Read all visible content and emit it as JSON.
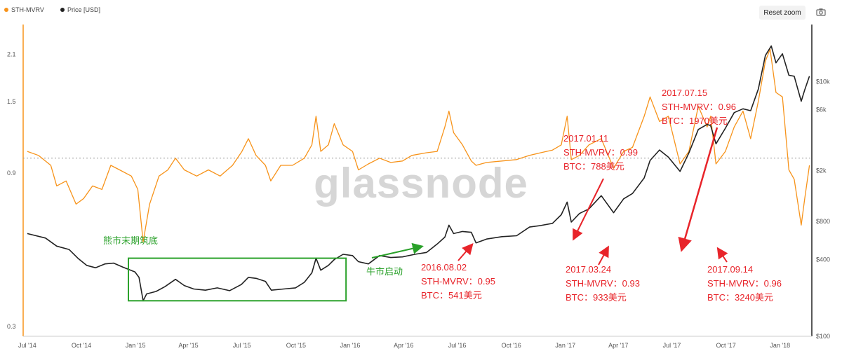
{
  "legend": {
    "series1": {
      "label": "STH-MVRV",
      "color": "#f7931a"
    },
    "series2": {
      "label": "Price [USD]",
      "color": "#222222"
    }
  },
  "toolbar": {
    "reset_zoom": "Reset zoom",
    "camera_icon": "camera-icon"
  },
  "watermark": "glassnode",
  "chart_data": {
    "type": "line",
    "x_ticks": [
      "Jul '14",
      "Oct '14",
      "Jan '15",
      "Apr '15",
      "Jul '15",
      "Oct '15",
      "Jan '16",
      "Apr '16",
      "Jul '16",
      "Oct '16",
      "Jan '17",
      "Apr '17",
      "Jul '17",
      "Oct '17",
      "Jan '18"
    ],
    "y_left_ticks": [
      "0.3",
      "0.9",
      "1.5",
      "2.1"
    ],
    "y_right_ticks": [
      "$100",
      "$400",
      "$800",
      "$2k",
      "$6k",
      "$10k"
    ],
    "y_left_log": true,
    "y_right_log": true,
    "reference_line": 1.0,
    "series": [
      {
        "name": "STH-MVRV",
        "color": "#f7931a",
        "axis": "left",
        "points": [
          [
            "2014-07-01",
            1.05
          ],
          [
            "2014-07-20",
            1.02
          ],
          [
            "2014-08-10",
            0.95
          ],
          [
            "2014-08-20",
            0.82
          ],
          [
            "2014-09-05",
            0.85
          ],
          [
            "2014-09-22",
            0.72
          ],
          [
            "2014-10-05",
            0.75
          ],
          [
            "2014-10-20",
            0.82
          ],
          [
            "2014-11-05",
            0.8
          ],
          [
            "2014-11-20",
            0.95
          ],
          [
            "2014-12-05",
            0.92
          ],
          [
            "2014-12-25",
            0.88
          ],
          [
            "2015-01-05",
            0.8
          ],
          [
            "2015-01-14",
            0.55
          ],
          [
            "2015-01-25",
            0.72
          ],
          [
            "2015-02-10",
            0.88
          ],
          [
            "2015-02-25",
            0.92
          ],
          [
            "2015-03-10",
            1.0
          ],
          [
            "2015-03-25",
            0.92
          ],
          [
            "2015-04-15",
            0.88
          ],
          [
            "2015-05-05",
            0.92
          ],
          [
            "2015-05-25",
            0.88
          ],
          [
            "2015-06-15",
            0.95
          ],
          [
            "2015-07-01",
            1.05
          ],
          [
            "2015-07-12",
            1.15
          ],
          [
            "2015-07-25",
            1.02
          ],
          [
            "2015-08-10",
            0.95
          ],
          [
            "2015-08-19",
            0.85
          ],
          [
            "2015-09-05",
            0.95
          ],
          [
            "2015-09-25",
            0.95
          ],
          [
            "2015-10-15",
            1.0
          ],
          [
            "2015-10-28",
            1.1
          ],
          [
            "2015-11-04",
            1.35
          ],
          [
            "2015-11-12",
            1.05
          ],
          [
            "2015-11-25",
            1.1
          ],
          [
            "2015-12-05",
            1.28
          ],
          [
            "2015-12-20",
            1.1
          ],
          [
            "2016-01-05",
            1.05
          ],
          [
            "2016-01-15",
            0.92
          ],
          [
            "2016-02-01",
            0.96
          ],
          [
            "2016-02-20",
            1.0
          ],
          [
            "2016-03-10",
            0.97
          ],
          [
            "2016-03-30",
            0.98
          ],
          [
            "2016-04-15",
            1.02
          ],
          [
            "2016-05-10",
            1.04
          ],
          [
            "2016-05-28",
            1.05
          ],
          [
            "2016-06-10",
            1.25
          ],
          [
            "2016-06-17",
            1.4
          ],
          [
            "2016-06-25",
            1.2
          ],
          [
            "2016-07-10",
            1.1
          ],
          [
            "2016-07-25",
            0.98
          ],
          [
            "2016-08-02",
            0.95
          ],
          [
            "2016-08-20",
            0.97
          ],
          [
            "2016-09-15",
            0.98
          ],
          [
            "2016-10-10",
            0.99
          ],
          [
            "2016-11-01",
            1.02
          ],
          [
            "2016-11-20",
            1.04
          ],
          [
            "2016-12-10",
            1.06
          ],
          [
            "2016-12-25",
            1.1
          ],
          [
            "2017-01-04",
            1.35
          ],
          [
            "2017-01-11",
            0.99
          ],
          [
            "2017-01-25",
            1.02
          ],
          [
            "2017-02-10",
            1.1
          ],
          [
            "2017-03-03",
            1.15
          ],
          [
            "2017-03-24",
            0.93
          ],
          [
            "2017-04-10",
            1.05
          ],
          [
            "2017-04-25",
            1.08
          ],
          [
            "2017-05-15",
            1.35
          ],
          [
            "2017-05-25",
            1.55
          ],
          [
            "2017-06-10",
            1.3
          ],
          [
            "2017-06-25",
            1.35
          ],
          [
            "2017-07-15",
            0.96
          ],
          [
            "2017-07-30",
            1.05
          ],
          [
            "2017-08-15",
            1.45
          ],
          [
            "2017-08-30",
            1.25
          ],
          [
            "2017-09-05",
            1.35
          ],
          [
            "2017-09-14",
            0.96
          ],
          [
            "2017-09-30",
            1.05
          ],
          [
            "2017-10-15",
            1.25
          ],
          [
            "2017-10-30",
            1.4
          ],
          [
            "2017-11-12",
            1.15
          ],
          [
            "2017-11-25",
            1.5
          ],
          [
            "2017-12-07",
            2.0
          ],
          [
            "2017-12-15",
            2.18
          ],
          [
            "2017-12-25",
            1.6
          ],
          [
            "2018-01-05",
            1.55
          ],
          [
            "2018-01-16",
            0.92
          ],
          [
            "2018-01-25",
            0.86
          ],
          [
            "2018-02-06",
            0.62
          ],
          [
            "2018-02-12",
            0.75
          ],
          [
            "2018-02-20",
            0.95
          ]
        ]
      },
      {
        "name": "Price [USD]",
        "color": "#222222",
        "axis": "right",
        "points": [
          [
            "2014-07-01",
            640
          ],
          [
            "2014-08-01",
            590
          ],
          [
            "2014-08-20",
            510
          ],
          [
            "2014-09-10",
            480
          ],
          [
            "2014-09-25",
            410
          ],
          [
            "2014-10-10",
            360
          ],
          [
            "2014-10-25",
            345
          ],
          [
            "2014-11-10",
            370
          ],
          [
            "2014-11-25",
            375
          ],
          [
            "2014-12-10",
            350
          ],
          [
            "2014-12-31",
            320
          ],
          [
            "2015-01-07",
            290
          ],
          [
            "2015-01-14",
            190
          ],
          [
            "2015-01-20",
            215
          ],
          [
            "2015-02-05",
            225
          ],
          [
            "2015-02-20",
            245
          ],
          [
            "2015-03-10",
            280
          ],
          [
            "2015-03-25",
            250
          ],
          [
            "2015-04-10",
            235
          ],
          [
            "2015-04-30",
            230
          ],
          [
            "2015-05-20",
            240
          ],
          [
            "2015-06-10",
            228
          ],
          [
            "2015-06-30",
            255
          ],
          [
            "2015-07-12",
            290
          ],
          [
            "2015-07-25",
            285
          ],
          [
            "2015-08-10",
            270
          ],
          [
            "2015-08-20",
            230
          ],
          [
            "2015-09-10",
            235
          ],
          [
            "2015-09-30",
            240
          ],
          [
            "2015-10-15",
            265
          ],
          [
            "2015-10-28",
            315
          ],
          [
            "2015-11-04",
            410
          ],
          [
            "2015-11-12",
            330
          ],
          [
            "2015-11-25",
            360
          ],
          [
            "2015-12-05",
            400
          ],
          [
            "2015-12-20",
            440
          ],
          [
            "2016-01-05",
            430
          ],
          [
            "2016-01-15",
            385
          ],
          [
            "2016-02-01",
            370
          ],
          [
            "2016-02-20",
            430
          ],
          [
            "2016-03-10",
            415
          ],
          [
            "2016-03-30",
            420
          ],
          [
            "2016-04-20",
            440
          ],
          [
            "2016-05-10",
            455
          ],
          [
            "2016-05-28",
            530
          ],
          [
            "2016-06-10",
            600
          ],
          [
            "2016-06-17",
            745
          ],
          [
            "2016-06-25",
            640
          ],
          [
            "2016-07-10",
            665
          ],
          [
            "2016-07-25",
            655
          ],
          [
            "2016-08-02",
            541
          ],
          [
            "2016-08-20",
            580
          ],
          [
            "2016-09-15",
            605
          ],
          [
            "2016-10-10",
            615
          ],
          [
            "2016-11-01",
            720
          ],
          [
            "2016-11-20",
            740
          ],
          [
            "2016-12-10",
            770
          ],
          [
            "2016-12-25",
            900
          ],
          [
            "2017-01-04",
            1130
          ],
          [
            "2017-01-11",
            788
          ],
          [
            "2017-01-25",
            920
          ],
          [
            "2017-02-10",
            1000
          ],
          [
            "2017-03-03",
            1270
          ],
          [
            "2017-03-24",
            933
          ],
          [
            "2017-04-10",
            1200
          ],
          [
            "2017-04-25",
            1320
          ],
          [
            "2017-05-15",
            1750
          ],
          [
            "2017-05-25",
            2400
          ],
          [
            "2017-06-10",
            2900
          ],
          [
            "2017-06-25",
            2550
          ],
          [
            "2017-07-15",
            1970
          ],
          [
            "2017-07-30",
            2750
          ],
          [
            "2017-08-15",
            4200
          ],
          [
            "2017-08-30",
            4600
          ],
          [
            "2017-09-05",
            4500
          ],
          [
            "2017-09-14",
            3240
          ],
          [
            "2017-09-30",
            4300
          ],
          [
            "2017-10-15",
            5700
          ],
          [
            "2017-10-30",
            6100
          ],
          [
            "2017-11-12",
            5900
          ],
          [
            "2017-11-25",
            8700
          ],
          [
            "2017-12-07",
            16000
          ],
          [
            "2017-12-17",
            19000
          ],
          [
            "2017-12-25",
            14000
          ],
          [
            "2018-01-05",
            16500
          ],
          [
            "2018-01-16",
            11200
          ],
          [
            "2018-01-25",
            11000
          ],
          [
            "2018-02-06",
            7000
          ],
          [
            "2018-02-12",
            8600
          ],
          [
            "2018-02-20",
            11000
          ]
        ]
      }
    ],
    "annotations": [
      {
        "id": "a1",
        "lines": [
          "熊市末期筑底"
        ],
        "color": "#2aa12a"
      },
      {
        "id": "a2",
        "lines": [
          "牛市启动"
        ],
        "color": "#2aa12a"
      },
      {
        "id": "a3",
        "lines": [
          "2016.08.02",
          "STH-MVRV：0.95",
          "BTC：541美元"
        ],
        "color": "#e8242a"
      },
      {
        "id": "a4",
        "lines": [
          "2017.01.11",
          "STH-MVRV：0.99",
          "BTC：788美元"
        ],
        "color": "#e8242a"
      },
      {
        "id": "a5",
        "lines": [
          "2017.03.24",
          "STH-MVRV：0.93",
          "BTC：933美元"
        ],
        "color": "#e8242a"
      },
      {
        "id": "a6",
        "lines": [
          "2017.07.15",
          "STH-MVRV：0.96",
          "BTC：1970美元"
        ],
        "color": "#e8242a"
      },
      {
        "id": "a7",
        "lines": [
          "2017.09.14",
          "STH-MVRV：0.96",
          "BTC：3240美元"
        ],
        "color": "#e8242a"
      }
    ]
  }
}
